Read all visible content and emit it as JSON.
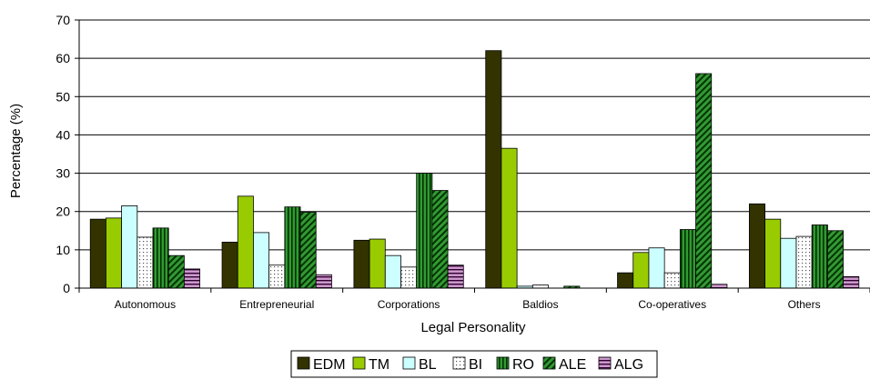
{
  "chart_data": {
    "type": "bar",
    "title": "",
    "xlabel": "Legal Personality",
    "ylabel": "Percentage (%)",
    "ylim": [
      0,
      70
    ],
    "yticks": [
      0,
      10,
      20,
      30,
      40,
      50,
      60,
      70
    ],
    "grid": true,
    "legend_position": "bottom",
    "categories": [
      "Autonomous",
      "Entrepreneurial",
      "Corporations",
      "Baldios",
      "Co-operatives",
      "Others"
    ],
    "series": [
      {
        "name": "EDM",
        "color": "#333300",
        "pattern": "solid",
        "values": [
          18,
          12,
          12.5,
          62,
          4,
          22
        ]
      },
      {
        "name": "TM",
        "color": "#99cc00",
        "pattern": "solid",
        "values": [
          18.3,
          24,
          12.8,
          36.5,
          9.3,
          18
        ]
      },
      {
        "name": "BL",
        "color": "#ccffff",
        "pattern": "solid",
        "values": [
          21.5,
          14.5,
          8.5,
          0.5,
          10.5,
          13
        ]
      },
      {
        "name": "BI",
        "color": "#ffffff",
        "pattern": "dots",
        "values": [
          13.3,
          6,
          5.5,
          0.8,
          4,
          13.5
        ]
      },
      {
        "name": "RO",
        "color": "#339933",
        "pattern": "vertical-stripes",
        "values": [
          15.7,
          21.2,
          30,
          0,
          15.3,
          16.5
        ]
      },
      {
        "name": "ALE",
        "color": "#339933",
        "pattern": "diagonal-stripes",
        "values": [
          8.5,
          19.8,
          25.5,
          0.5,
          56,
          15
        ]
      },
      {
        "name": "ALG",
        "color": "#cc99cc",
        "pattern": "horizontal-stripes",
        "values": [
          5,
          3.5,
          6,
          0,
          1,
          3
        ]
      }
    ]
  }
}
